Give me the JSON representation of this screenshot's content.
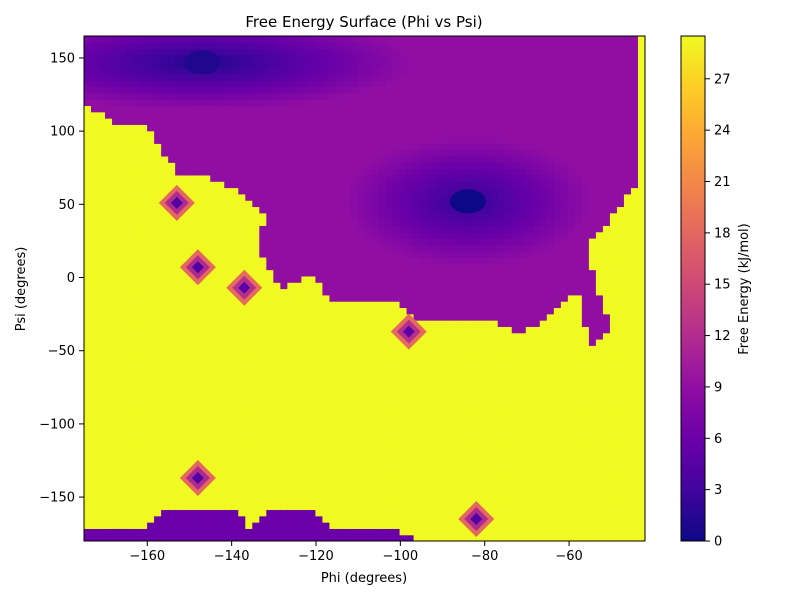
{
  "chart_data": {
    "type": "heatmap",
    "title": "Free Energy Surface (Phi vs Psi)",
    "xlabel": "Phi (degrees)",
    "ylabel": "Psi (degrees)",
    "xlim": [
      -175,
      -42
    ],
    "ylim": [
      -180,
      165
    ],
    "x_ticks": [
      -160,
      -140,
      -120,
      -100,
      -80,
      -60
    ],
    "y_ticks": [
      150,
      100,
      50,
      0,
      -50,
      -100,
      -150
    ],
    "x_tick_labels": [
      "−160",
      "−140",
      "−120",
      "−100",
      "−80",
      "−60"
    ],
    "y_tick_labels": [
      "150",
      "100",
      "50",
      "0",
      "−50",
      "−100",
      "−150"
    ],
    "colorbar": {
      "label": "Free Energy (kJ/mol)",
      "range": [
        0,
        29.5
      ],
      "ticks": [
        0,
        3,
        6,
        9,
        12,
        15,
        18,
        21,
        24,
        27
      ],
      "tick_labels": [
        "0",
        "3",
        "6",
        "9",
        "12",
        "15",
        "18",
        "21",
        "24",
        "27"
      ],
      "colormap": "plasma"
    },
    "grid": false,
    "minima": [
      {
        "phi": -84,
        "psi": 52,
        "energy": 0
      },
      {
        "phi": -147,
        "psi": 147,
        "energy": 1
      }
    ],
    "spots": [
      {
        "phi": -148,
        "psi": 7,
        "energy": 4
      },
      {
        "phi": -148,
        "psi": -137,
        "energy": 4
      },
      {
        "phi": -137,
        "psi": -7,
        "energy": 5
      },
      {
        "phi": -98,
        "psi": -37,
        "energy": 5
      },
      {
        "phi": -82,
        "psi": -165,
        "energy": 4
      },
      {
        "phi": -153,
        "psi": 51,
        "energy": 4
      }
    ]
  }
}
